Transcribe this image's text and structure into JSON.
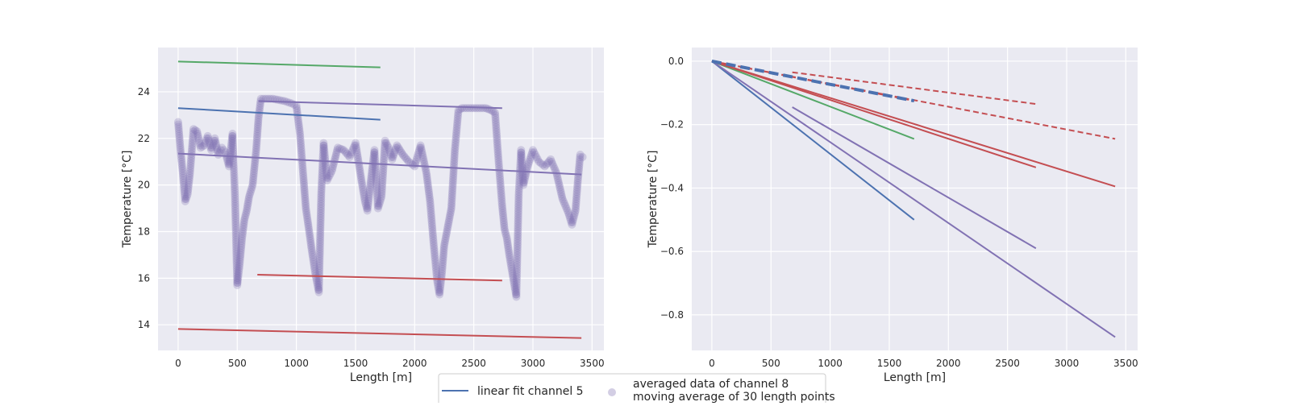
{
  "colors": {
    "background": "#eaeaf2",
    "grid": "#ffffff",
    "blue": "#4c72b0",
    "green": "#55a868",
    "red": "#c44e52",
    "purple": "#8172b3",
    "scatter": "#8172b3"
  },
  "chart_data": [
    {
      "type": "scatter",
      "xlabel": "Length [m]",
      "ylabel": "Temperature [°C]",
      "xlim": [
        -170,
        3600
      ],
      "ylim": [
        12.9,
        25.9
      ],
      "xticks": [
        0,
        500,
        1000,
        1500,
        2000,
        2500,
        3000,
        3500
      ],
      "yticks": [
        14,
        16,
        18,
        20,
        22,
        24
      ],
      "grid": true,
      "lines": [
        {
          "color": "green",
          "style": "solid",
          "x": [
            0,
            1710
          ],
          "y": [
            25.3,
            25.05
          ]
        },
        {
          "color": "blue",
          "style": "solid",
          "x": [
            0,
            1710
          ],
          "y": [
            23.3,
            22.8
          ]
        },
        {
          "color": "purple",
          "style": "solid",
          "x": [
            680,
            2740
          ],
          "y": [
            23.6,
            23.3
          ]
        },
        {
          "color": "purple",
          "style": "solid",
          "x": [
            0,
            3410
          ],
          "y": [
            21.35,
            20.45
          ]
        },
        {
          "color": "red",
          "style": "solid",
          "x": [
            670,
            2740
          ],
          "y": [
            16.15,
            15.9
          ]
        },
        {
          "color": "red",
          "style": "solid",
          "x": [
            0,
            3410
          ],
          "y": [
            13.82,
            13.43
          ]
        }
      ],
      "scatter_series": {
        "name": "averaged data of channel 8",
        "x": [
          0,
          20,
          40,
          60,
          80,
          100,
          130,
          160,
          190,
          220,
          250,
          280,
          310,
          340,
          370,
          400,
          430,
          460,
          480,
          500,
          520,
          540,
          560,
          580,
          600,
          630,
          660,
          680,
          700,
          720,
          740,
          800,
          900,
          960,
          1000,
          1030,
          1060,
          1080,
          1100,
          1130,
          1160,
          1190,
          1210,
          1230,
          1260,
          1300,
          1350,
          1400,
          1450,
          1500,
          1550,
          1580,
          1600,
          1630,
          1660,
          1690,
          1720,
          1750,
          1780,
          1810,
          1850,
          1900,
          1950,
          2000,
          2050,
          2100,
          2130,
          2160,
          2190,
          2210,
          2230,
          2250,
          2280,
          2310,
          2340,
          2370,
          2400,
          2500,
          2600,
          2650,
          2680,
          2710,
          2740,
          2760,
          2780,
          2800,
          2820,
          2840,
          2860,
          2880,
          2900,
          2920,
          2950,
          3000,
          3050,
          3100,
          3150,
          3200,
          3250,
          3300,
          3330,
          3360,
          3380,
          3400,
          3420
        ],
        "y": [
          22.7,
          21.5,
          20.5,
          19.3,
          19.6,
          20.5,
          22.4,
          22.3,
          21.6,
          21.7,
          22.1,
          21.5,
          22.0,
          21.3,
          21.6,
          21.4,
          20.8,
          22.2,
          19.6,
          15.7,
          16.6,
          17.7,
          18.5,
          18.9,
          19.5,
          20.0,
          21.5,
          22.9,
          23.7,
          23.7,
          23.7,
          23.7,
          23.6,
          23.5,
          23.4,
          22.2,
          20.3,
          19.0,
          18.3,
          17.2,
          16.2,
          15.4,
          19.6,
          21.8,
          20.2,
          20.6,
          21.6,
          21.5,
          21.2,
          21.8,
          20.2,
          19.3,
          18.9,
          20.2,
          21.5,
          19.0,
          19.5,
          21.9,
          21.6,
          21.1,
          21.7,
          21.3,
          21.0,
          20.8,
          21.7,
          20.5,
          19.3,
          17.5,
          15.9,
          15.3,
          16.2,
          17.4,
          18.2,
          19.0,
          21.5,
          23.2,
          23.3,
          23.3,
          23.3,
          23.2,
          23.1,
          21.0,
          19.1,
          18.1,
          17.7,
          17.0,
          16.4,
          15.8,
          15.2,
          19.6,
          21.5,
          20.0,
          20.7,
          21.5,
          21.0,
          20.8,
          21.1,
          20.5,
          19.4,
          18.8,
          18.3,
          18.9,
          20.2,
          21.3,
          21.2
        ]
      }
    },
    {
      "type": "line",
      "xlabel": "Length [m]",
      "ylabel": "Temperature [°C]",
      "xlim": [
        -170,
        3600
      ],
      "ylim": [
        -0.912,
        0.043
      ],
      "xticks": [
        0,
        500,
        1000,
        1500,
        2000,
        2500,
        3000,
        3500
      ],
      "yticks": [
        0.0,
        -0.2,
        -0.4,
        -0.6,
        -0.8
      ],
      "ytick_labels": [
        "0.0",
        "−0.2",
        "−0.4",
        "−0.6",
        "−0.8"
      ],
      "grid": true,
      "lines": [
        {
          "color": "blue",
          "style": "solid",
          "x": [
            0,
            1710
          ],
          "y": [
            0,
            -0.5
          ]
        },
        {
          "color": "green",
          "style": "solid",
          "x": [
            0,
            1710
          ],
          "y": [
            0,
            -0.245
          ]
        },
        {
          "color": "red",
          "style": "solid",
          "x": [
            0,
            3410
          ],
          "y": [
            0,
            -0.395
          ]
        },
        {
          "color": "red",
          "style": "solid",
          "x": [
            0,
            2740
          ],
          "y": [
            0,
            -0.335
          ]
        },
        {
          "color": "purple",
          "style": "solid",
          "x": [
            680,
            2740
          ],
          "y": [
            -0.145,
            -0.59
          ]
        },
        {
          "color": "purple",
          "style": "solid",
          "x": [
            0,
            3410
          ],
          "y": [
            0,
            -0.87
          ]
        },
        {
          "color": "red",
          "style": "dashed",
          "x": [
            680,
            2740
          ],
          "y": [
            -0.035,
            -0.135
          ]
        },
        {
          "color": "red",
          "style": "dashed",
          "x": [
            0,
            3410
          ],
          "y": [
            0,
            -0.245
          ]
        },
        {
          "color": "red",
          "style": "dashed",
          "x": [
            0,
            1710
          ],
          "y": [
            0,
            -0.125
          ]
        },
        {
          "color": "blue",
          "style": "dashed-thick",
          "x": [
            0,
            1710
          ],
          "y": [
            0,
            -0.125
          ]
        }
      ]
    }
  ],
  "legend": {
    "placement": "bottom-center",
    "items": [
      {
        "label": "linear fit channel 5",
        "marker": "line",
        "color": "blue"
      },
      {
        "label": "averaged data of channel 8",
        "marker": "circle",
        "color": "scatter"
      },
      {
        "label": "moving average of 30 length points",
        "marker": "none",
        "color": "scatter"
      }
    ]
  }
}
